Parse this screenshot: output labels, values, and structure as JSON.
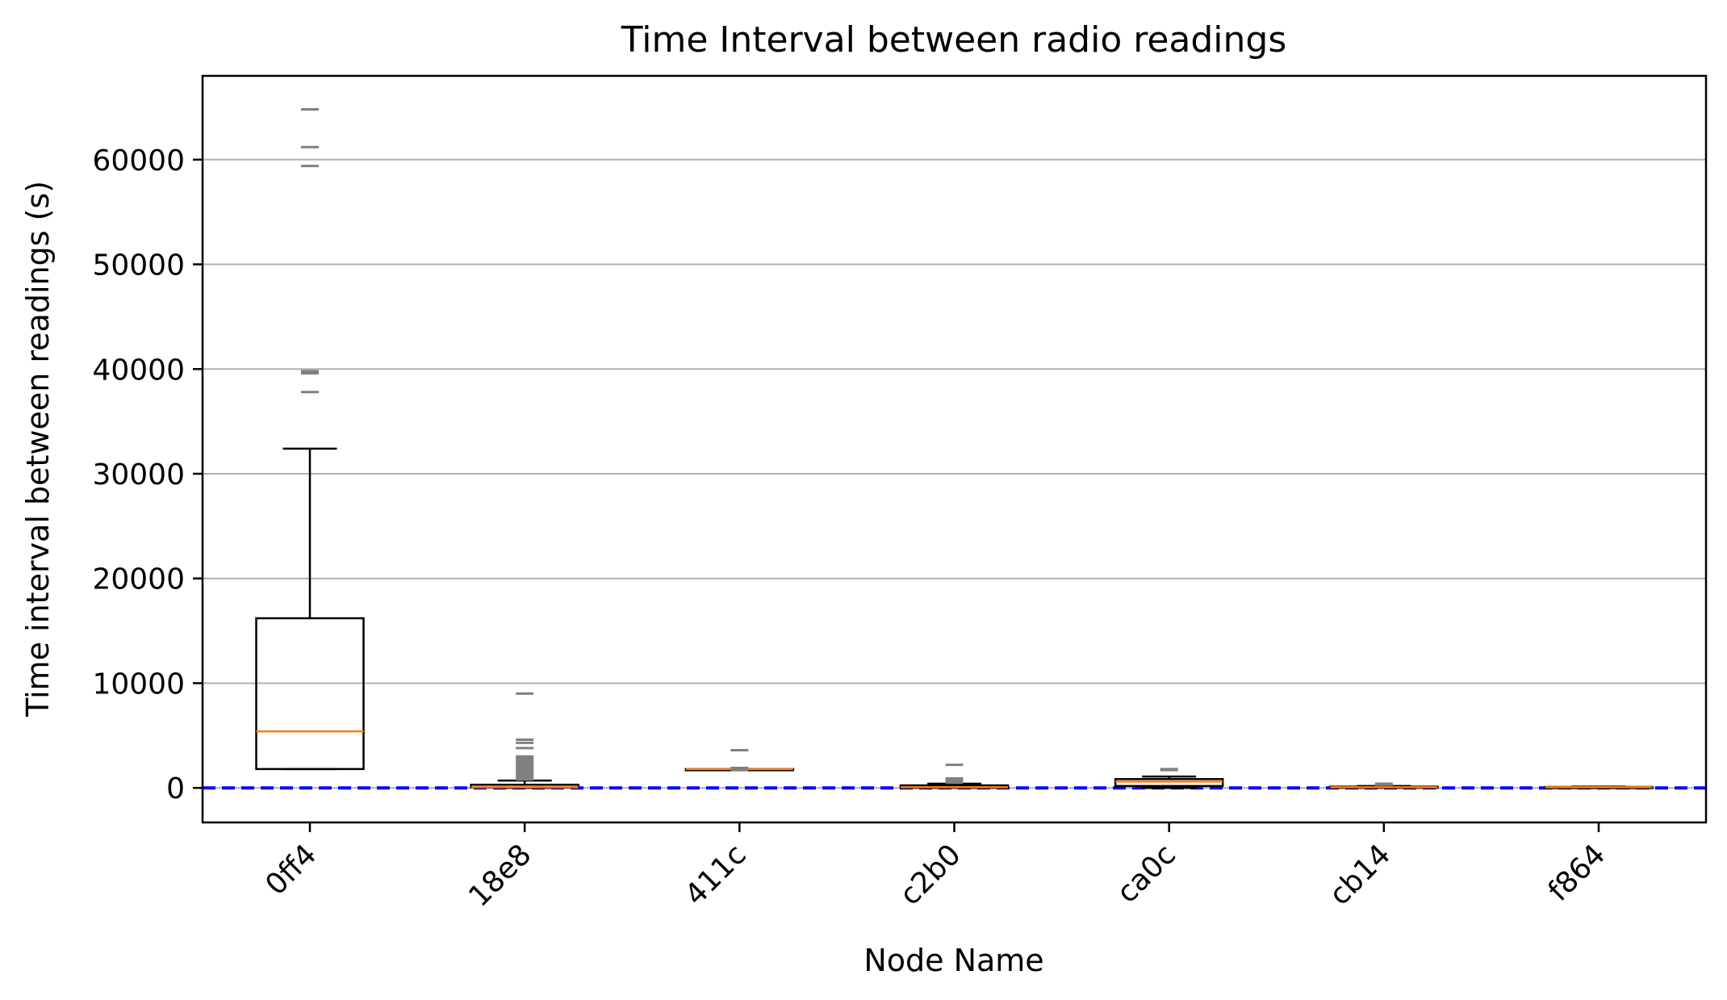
{
  "chart_data": {
    "type": "box",
    "title": "Time Interval between radio readings",
    "xlabel": "Node Name",
    "ylabel": "Time interval between readings (s)",
    "ylim": [
      -3300,
      68000
    ],
    "yticks": [
      0,
      10000,
      20000,
      30000,
      40000,
      50000,
      60000
    ],
    "grid": "y",
    "reference_line": {
      "y": 0,
      "color": "#0000ff",
      "style": "dashed"
    },
    "colors": {
      "box": "#000000",
      "median": "#ff7f0e",
      "outlier": "#808080",
      "grid": "#b0b0b0"
    },
    "categories": [
      "0ff4",
      "18e8",
      "411c",
      "c2b0",
      "ca0c",
      "cb14",
      "f864"
    ],
    "boxes": [
      {
        "whislo": 1800,
        "q1": 1800,
        "med": 5400,
        "q3": 16200,
        "whishi": 32400,
        "fliers": [
          37800,
          39600,
          39800,
          59400,
          61200,
          64800
        ]
      },
      {
        "whislo": 0,
        "q1": 30,
        "med": 60,
        "q3": 300,
        "whishi": 700,
        "fliers": [
          800,
          1000,
          1200,
          1400,
          1600,
          1800,
          2000,
          2200,
          2400,
          2600,
          2800,
          3000,
          3800,
          4300,
          4600,
          9000
        ]
      },
      {
        "whislo": 1800,
        "q1": 1800,
        "med": 1800,
        "q3": 1800,
        "whishi": 1800,
        "fliers": [
          1700,
          1900,
          3600
        ]
      },
      {
        "whislo": 0,
        "q1": 0,
        "med": 60,
        "q3": 240,
        "whishi": 400,
        "fliers": [
          500,
          700,
          900,
          2200
        ]
      },
      {
        "whislo": 0,
        "q1": 180,
        "med": 600,
        "q3": 840,
        "whishi": 1080,
        "fliers": [
          1700,
          1800
        ]
      },
      {
        "whislo": 0,
        "q1": 0,
        "med": 60,
        "q3": 120,
        "whishi": 180,
        "fliers": [
          300,
          400
        ]
      },
      {
        "whislo": 0,
        "q1": 30,
        "med": 60,
        "q3": 90,
        "whishi": 120,
        "fliers": []
      }
    ]
  }
}
